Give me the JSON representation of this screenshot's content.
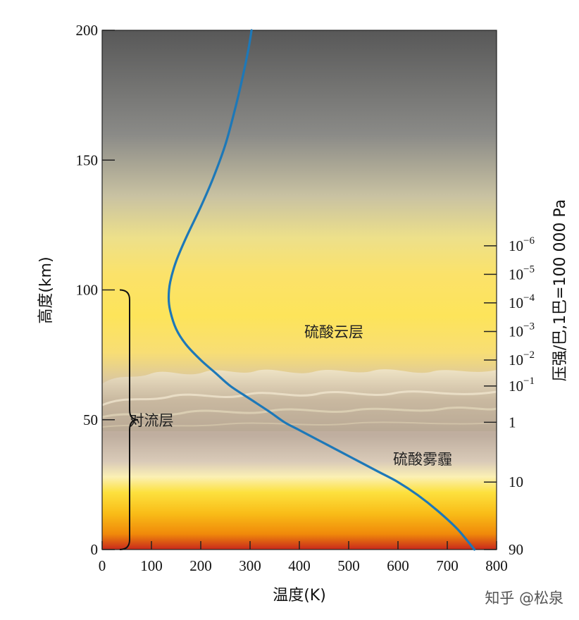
{
  "chart_data": {
    "type": "line",
    "xlabel": "温度(K)",
    "ylabel": "高度(km)",
    "y2label": "压强/巴,1巴=100 000 Pa",
    "xlim": [
      0,
      800
    ],
    "ylim": [
      0,
      200
    ],
    "x_ticks": [
      0,
      100,
      200,
      300,
      400,
      500,
      600,
      700,
      800
    ],
    "y_ticks": [
      0,
      50,
      100,
      150,
      200
    ],
    "x_tick_labels": [
      "0",
      "100",
      "200",
      "300",
      "400",
      "500",
      "600",
      "700",
      "800"
    ],
    "y_tick_labels": [
      "0",
      "50",
      "100",
      "150",
      "200"
    ],
    "pressure_ticks": [
      {
        "altitude": 0,
        "base": "90",
        "exp": ""
      },
      {
        "altitude": 26,
        "base": "10",
        "exp": ""
      },
      {
        "altitude": 49,
        "base": "1",
        "exp": ""
      },
      {
        "altitude": 63,
        "base": "10",
        "exp": "−1"
      },
      {
        "altitude": 73,
        "base": "10",
        "exp": "−2"
      },
      {
        "altitude": 84,
        "base": "10",
        "exp": "−3"
      },
      {
        "altitude": 95,
        "base": "10",
        "exp": "−4"
      },
      {
        "altitude": 106,
        "base": "10",
        "exp": "−5"
      },
      {
        "altitude": 117,
        "base": "10",
        "exp": "−6"
      }
    ],
    "series": [
      {
        "color": "#1d78b8",
        "points": [
          [
            755,
            0
          ],
          [
            720,
            8
          ],
          [
            680,
            15
          ],
          [
            640,
            21
          ],
          [
            600,
            26
          ],
          [
            560,
            30
          ],
          [
            520,
            34
          ],
          [
            480,
            38
          ],
          [
            440,
            42
          ],
          [
            400,
            46
          ],
          [
            370,
            49
          ],
          [
            340,
            53
          ],
          [
            300,
            58
          ],
          [
            260,
            63
          ],
          [
            230,
            68
          ],
          [
            200,
            73
          ],
          [
            170,
            79
          ],
          [
            150,
            85
          ],
          [
            138,
            92
          ],
          [
            135,
            97
          ],
          [
            138,
            103
          ],
          [
            150,
            111
          ],
          [
            170,
            120
          ],
          [
            200,
            132
          ],
          [
            225,
            143
          ],
          [
            250,
            156
          ],
          [
            270,
            170
          ],
          [
            285,
            182
          ],
          [
            297,
            193
          ],
          [
            303,
            200
          ]
        ]
      }
    ],
    "regions": [
      {
        "label": "硫酸云层",
        "x": 470,
        "y": 84
      },
      {
        "label": "对流层",
        "x": 100,
        "y": 50
      },
      {
        "label": "硫酸雾霾",
        "x": 650,
        "y": 35
      }
    ],
    "brace": {
      "from": 0,
      "to": 100
    }
  },
  "watermark": "知乎 @松泉"
}
